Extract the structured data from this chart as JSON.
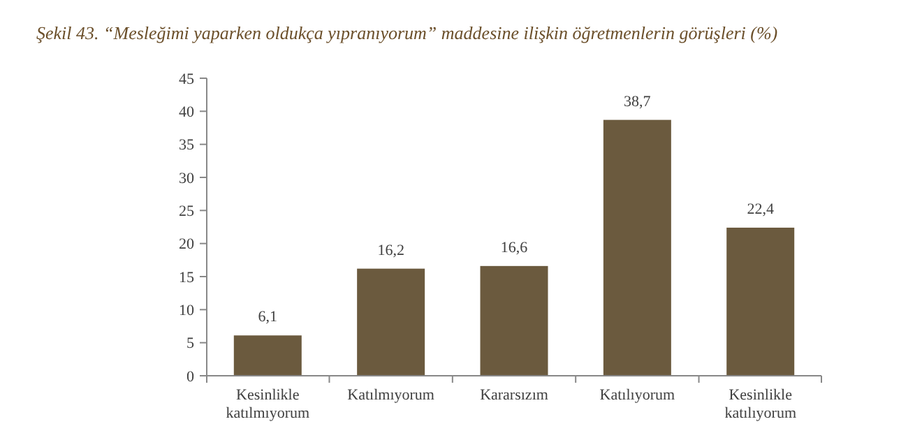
{
  "chart_data": {
    "type": "bar",
    "title": "Şekil 43. “Mesleğimi yaparken oldukça yıpranıyorum” maddesine ilişkin öğretmenlerin görüşleri (%)",
    "categories": [
      "Kesinlikle katılmıyorum",
      "Katılmıyorum",
      "Kararsızım",
      "Katılıyorum",
      "Kesinlikle katılıyorum"
    ],
    "values": [
      6.1,
      16.2,
      16.6,
      38.7,
      22.4
    ],
    "value_labels": [
      "6,1",
      "16,2",
      "16,6",
      "38,7",
      "22,4"
    ],
    "color": "#6b5a3e",
    "ylim": [
      0,
      45
    ],
    "yticks": [
      0,
      5,
      10,
      15,
      20,
      25,
      30,
      35,
      40,
      45
    ],
    "grid": false
  }
}
